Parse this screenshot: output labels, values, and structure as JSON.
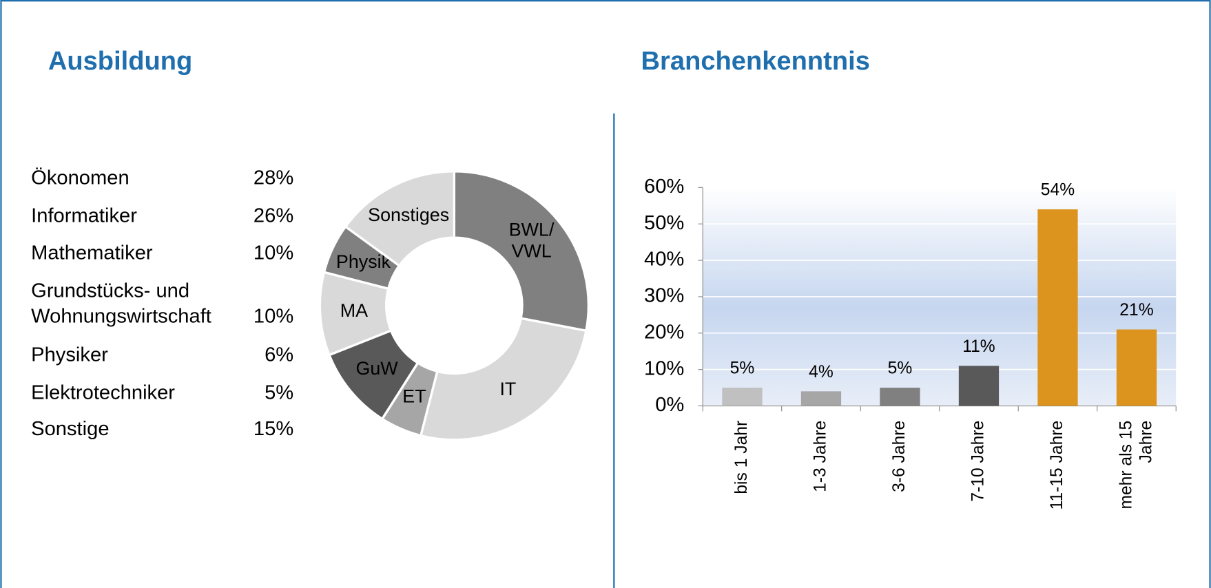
{
  "chart_data": [
    {
      "type": "pie",
      "title": "Ausbildung",
      "donut": true,
      "categories": [
        "BWL/\nVWL",
        "IT",
        "ET",
        "GuW",
        "MA",
        "Physik",
        "Sonstiges"
      ],
      "values": [
        28,
        26,
        5,
        10,
        10,
        6,
        15
      ],
      "colors": [
        "#808080",
        "#d9d9d9",
        "#a6a6a6",
        "#595959",
        "#d9d9d9",
        "#808080",
        "#d9d9d9"
      ]
    },
    {
      "type": "bar",
      "title": "Branchenkenntnis",
      "categories": [
        "bis 1 Jahr",
        "1-3 Jahre",
        "3-6 Jahre",
        "7-10 Jahre",
        "11-15 Jahre",
        "mehr als 15\nJahre"
      ],
      "values": [
        5,
        4,
        5,
        11,
        54,
        21
      ],
      "value_labels": [
        "5%",
        "4%",
        "5%",
        "11%",
        "54%",
        "21%"
      ],
      "colors": [
        "#c0c0c0",
        "#a6a6a6",
        "#808080",
        "#595959",
        "#dc941e",
        "#dc941e"
      ],
      "ylim": [
        0,
        60
      ],
      "yticks": [
        {
          "value": 0,
          "label": "0%"
        },
        {
          "value": 10,
          "label": "10%"
        },
        {
          "value": 20,
          "label": "20%"
        },
        {
          "value": 30,
          "label": "30%"
        },
        {
          "value": 40,
          "label": "40%"
        },
        {
          "value": 50,
          "label": "50%"
        },
        {
          "value": 60,
          "label": "60%"
        }
      ],
      "grid": true
    }
  ],
  "table": {
    "rows": [
      [
        "Ökonomen",
        "28%"
      ],
      [
        "Informatiker",
        "26%"
      ],
      [
        "Mathematiker",
        "10%"
      ],
      [
        "Grundstücks- und\nWohnungswirtschaft",
        "10%"
      ],
      [
        "Physiker",
        "6%"
      ],
      [
        "Elektrotechniker",
        "5%"
      ],
      [
        "Sonstige",
        "15%"
      ]
    ]
  }
}
